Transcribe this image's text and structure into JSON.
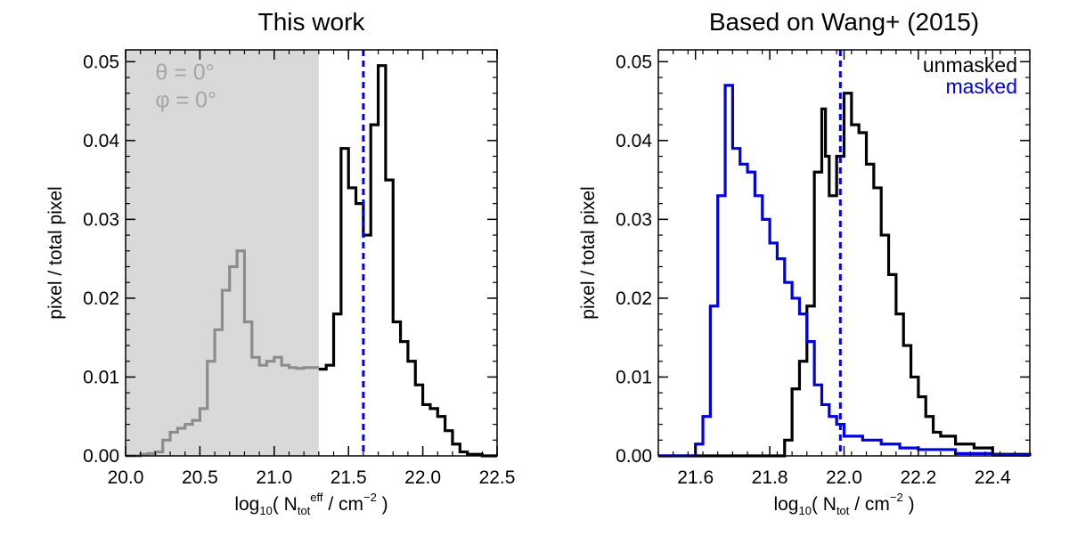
{
  "chart_data": [
    {
      "type": "line",
      "title": "This work",
      "ylabel": "pixel / total pixel",
      "xlabel": {
        "prefix": "log",
        "sub1": "10",
        "mid": "( N",
        "sub2": "tot",
        "sup2": "eff",
        "post": " / cm",
        "sup3": "−2",
        "end": " )"
      },
      "xlim": [
        20.0,
        22.5
      ],
      "ylim": [
        0.0,
        0.0515
      ],
      "xticks": [
        {
          "v": 20.0,
          "label": "20.0"
        },
        {
          "v": 20.5,
          "label": "20.5"
        },
        {
          "v": 21.0,
          "label": "21.0"
        },
        {
          "v": 21.5,
          "label": "21.5"
        },
        {
          "v": 22.0,
          "label": "22.0"
        },
        {
          "v": 22.5,
          "label": "22.5"
        }
      ],
      "yticks": [
        {
          "v": 0.0,
          "label": "0.00"
        },
        {
          "v": 0.01,
          "label": "0.01"
        },
        {
          "v": 0.02,
          "label": "0.02"
        },
        {
          "v": 0.03,
          "label": "0.03"
        },
        {
          "v": 0.04,
          "label": "0.04"
        },
        {
          "v": 0.05,
          "label": "0.05"
        }
      ],
      "shade": {
        "x0": 20.0,
        "x1": 21.3,
        "color": "#d9d9d9"
      },
      "annotations": [
        {
          "text": "θ = 0°",
          "x": 20.2,
          "y": 0.0477
        },
        {
          "text": "φ = 0°",
          "x": 20.2,
          "y": 0.0442
        }
      ],
      "vline": {
        "x": 21.6,
        "color": "#0000e0"
      },
      "series": [
        {
          "color": "#8c8c8c",
          "x": [
            20.0,
            20.05,
            20.1,
            20.15,
            20.2,
            20.25,
            20.3,
            20.35,
            20.4,
            20.45,
            20.5,
            20.55,
            20.6,
            20.65,
            20.7,
            20.75,
            20.8,
            20.85,
            20.9,
            20.95,
            21.0,
            21.05,
            21.1,
            21.15,
            21.2,
            21.25,
            21.3
          ],
          "y": [
            0.0,
            0.0,
            0.0002,
            0.0003,
            0.0005,
            0.002,
            0.003,
            0.0035,
            0.004,
            0.0045,
            0.006,
            0.012,
            0.016,
            0.021,
            0.024,
            0.026,
            0.017,
            0.0125,
            0.0115,
            0.012,
            0.0125,
            0.0115,
            0.0112,
            0.0111,
            0.0112,
            0.0112,
            0.0112
          ]
        },
        {
          "color": "#000000",
          "x": [
            21.3,
            21.35,
            21.4,
            21.45,
            21.5,
            21.55,
            21.6,
            21.65,
            21.7,
            21.75,
            21.8,
            21.85,
            21.9,
            21.95,
            22.0,
            22.05,
            22.1,
            22.15,
            22.2,
            22.25,
            22.3,
            22.35,
            22.4,
            22.45,
            22.5
          ],
          "y": [
            0.011,
            0.0115,
            0.018,
            0.039,
            0.034,
            0.032,
            0.028,
            0.042,
            0.0495,
            0.035,
            0.017,
            0.0145,
            0.012,
            0.009,
            0.0065,
            0.006,
            0.005,
            0.0032,
            0.0015,
            0.0005,
            0.0002,
            0.0002,
            0.0,
            0.0,
            0.0
          ]
        }
      ]
    },
    {
      "type": "line",
      "title": "Based on Wang+ (2015)",
      "ylabel": "pixel / total pixel",
      "xlabel": {
        "prefix": "log",
        "sub1": "10",
        "mid": "( N",
        "sub2": "tot",
        "sup2": "",
        "post": " / cm",
        "sup3": "−2",
        "end": " )"
      },
      "xlim": [
        21.5,
        22.5
      ],
      "ylim": [
        0.0,
        0.0515
      ],
      "xticks": [
        {
          "v": 21.6,
          "label": "21.6"
        },
        {
          "v": 21.8,
          "label": "21.8"
        },
        {
          "v": 22.0,
          "label": "22.0"
        },
        {
          "v": 22.2,
          "label": "22.2"
        },
        {
          "v": 22.4,
          "label": "22.4"
        }
      ],
      "yticks": [
        {
          "v": 0.0,
          "label": "0.00"
        },
        {
          "v": 0.01,
          "label": "0.01"
        },
        {
          "v": 0.02,
          "label": "0.02"
        },
        {
          "v": 0.03,
          "label": "0.03"
        },
        {
          "v": 0.04,
          "label": "0.04"
        },
        {
          "v": 0.05,
          "label": "0.05"
        }
      ],
      "legend": [
        {
          "label": "unmasked",
          "color": "#000000"
        },
        {
          "label": "masked",
          "color": "#0000e0"
        }
      ],
      "legend_position": "top-right",
      "vline": {
        "x": 21.99,
        "color": "#0000e0"
      },
      "series": [
        {
          "name": "unmasked",
          "color": "#000000",
          "x": [
            21.5,
            21.81,
            21.84,
            21.86,
            21.88,
            21.9,
            21.92,
            21.94,
            21.95,
            21.96,
            21.98,
            22.0,
            22.02,
            22.04,
            22.06,
            22.08,
            22.1,
            22.12,
            22.14,
            22.16,
            22.18,
            22.2,
            22.22,
            22.24,
            22.26,
            22.3,
            22.35,
            22.4,
            22.5
          ],
          "y": [
            0.0,
            0.0,
            0.002,
            0.0085,
            0.012,
            0.019,
            0.036,
            0.044,
            0.038,
            0.033,
            0.038,
            0.046,
            0.042,
            0.041,
            0.037,
            0.034,
            0.028,
            0.023,
            0.018,
            0.014,
            0.01,
            0.0075,
            0.005,
            0.003,
            0.0025,
            0.0015,
            0.001,
            0.0002,
            0.0
          ]
        },
        {
          "name": "masked",
          "color": "#0000e0",
          "x": [
            21.5,
            21.57,
            21.6,
            21.62,
            21.64,
            21.66,
            21.68,
            21.7,
            21.72,
            21.74,
            21.76,
            21.78,
            21.8,
            21.82,
            21.84,
            21.86,
            21.88,
            21.9,
            21.92,
            21.94,
            21.96,
            21.98,
            22.0,
            22.05,
            22.1,
            22.15,
            22.2,
            22.3,
            22.4,
            22.5
          ],
          "y": [
            0.0,
            0.0,
            0.0015,
            0.005,
            0.019,
            0.033,
            0.047,
            0.039,
            0.037,
            0.036,
            0.033,
            0.03,
            0.027,
            0.025,
            0.022,
            0.02,
            0.018,
            0.0145,
            0.009,
            0.0065,
            0.005,
            0.004,
            0.0025,
            0.002,
            0.0015,
            0.001,
            0.0008,
            0.0003,
            0.0001,
            0.0
          ]
        }
      ]
    }
  ]
}
